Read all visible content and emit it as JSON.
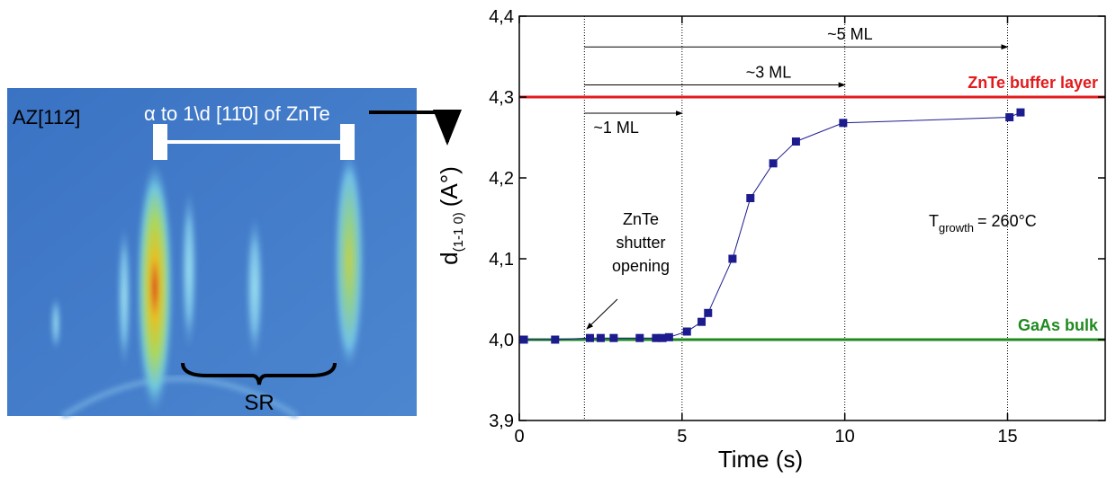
{
  "image": {
    "orientation_label": "AZ[112̄]",
    "spacing_label": "α to 1\\d [11̄0] of ZnTe",
    "region_label": "SR"
  },
  "chart_data": {
    "type": "line",
    "x_label": "Time (s)",
    "y_label": {
      "symbol": "d",
      "subscript": "(1-1 0)",
      "unit": "(A°)"
    },
    "x": [
      0.14,
      1.1,
      2.17,
      2.5,
      2.9,
      3.7,
      4.2,
      4.4,
      4.6,
      5.15,
      5.6,
      5.8,
      6.55,
      7.1,
      7.8,
      8.5,
      9.95,
      15.06,
      15.4
    ],
    "series": [
      {
        "color": "#1c1c8f",
        "values": [
          4.0,
          4.0,
          4.002,
          4.002,
          4.002,
          4.002,
          4.002,
          4.002,
          4.003,
          4.01,
          4.022,
          4.033,
          4.1,
          4.175,
          4.218,
          4.245,
          4.268,
          4.275,
          4.281
        ]
      }
    ],
    "xlim": [
      0,
      18
    ],
    "xticks": [
      0,
      5,
      10,
      15
    ],
    "ylim": [
      3.9,
      4.4
    ],
    "yticks": [
      {
        "value": 3.9,
        "label": "3,9"
      },
      {
        "value": 4.0,
        "label": "4,0"
      },
      {
        "value": 4.1,
        "label": "4,1"
      },
      {
        "value": 4.2,
        "label": "4,2"
      },
      {
        "value": 4.3,
        "label": "4,3"
      },
      {
        "value": 4.4,
        "label": "4,4"
      }
    ],
    "reference_lines": [
      {
        "name": "ZnTe buffer layer",
        "value": 4.3,
        "color": "#e31a1c"
      },
      {
        "name": "GaAs bulk",
        "value": 4.0,
        "color": "#1f8a1f"
      }
    ],
    "vlines": [
      2,
      5,
      10,
      15
    ],
    "ml_arrows": [
      {
        "text": "~1 ML",
        "x": [
          2,
          5
        ],
        "y": 4.28
      },
      {
        "text": "~3 ML",
        "x": [
          2,
          10
        ],
        "y": 4.315
      },
      {
        "text": "~5 ML",
        "x": [
          2,
          15
        ],
        "y": 4.362
      }
    ],
    "shutter_note": [
      "ZnTe",
      "shutter",
      "opening"
    ],
    "temperature_note": {
      "symbol": "T",
      "subscript": "growth",
      "text": "= 260°C"
    }
  }
}
